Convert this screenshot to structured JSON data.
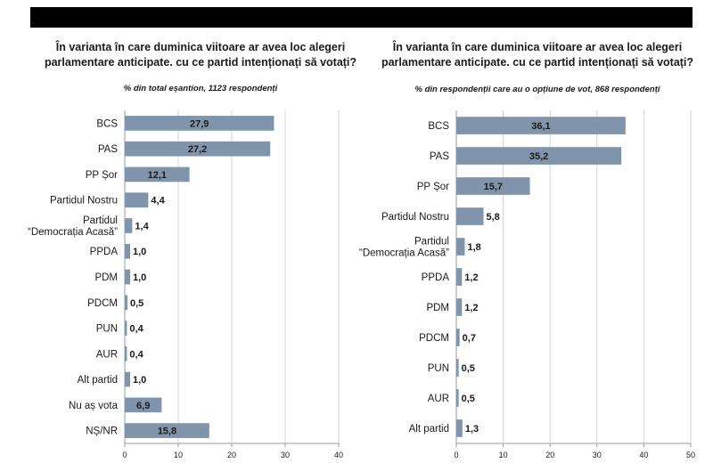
{
  "chart_data": [
    {
      "type": "bar",
      "orientation": "horizontal",
      "title": "În varianta în care duminica viitoare ar avea loc alegeri parlamentare anticipate. cu ce partid intenționați să votați?",
      "subtitle": "% din total eșantion, 1123 respondenți",
      "categories": [
        "BCS",
        "PAS",
        "PP Șor",
        "Partidul Nostru",
        "Partidul\n“Democrația Acasă”",
        "PPDA",
        "PDM",
        "PDCM",
        "PUN",
        "AUR",
        "Alt partid",
        "Nu aș vota",
        "NȘ/NR"
      ],
      "values": [
        27.9,
        27.2,
        12.1,
        4.4,
        1.4,
        1.0,
        1.0,
        0.5,
        0.4,
        0.4,
        1.0,
        6.9,
        15.8
      ],
      "value_labels": [
        "27,9",
        "27,2",
        "12,1",
        "4,4",
        "1,4",
        "1,0",
        "1,0",
        "0,5",
        "0,4",
        "0,4",
        "1,0",
        "6,9",
        "15,8"
      ],
      "xlim": [
        0,
        40
      ],
      "xticks": [
        0,
        10,
        20,
        30,
        40
      ],
      "grid": true,
      "bar_color": "#8095ab"
    },
    {
      "type": "bar",
      "orientation": "horizontal",
      "title": "În varianta în care duminica viitoare ar avea loc alegeri parlamentare anticipate. cu ce partid intenționați să votați?",
      "subtitle": "% din respondenții care au o opțiune de vot, 868 respondenți",
      "categories": [
        "BCS",
        "PAS",
        "PP Șor",
        "Partidul Nostru",
        "Partidul\n“Democrația Acasă”",
        "PPDA",
        "PDM",
        "PDCM",
        "PUN",
        "AUR",
        "Alt partid"
      ],
      "values": [
        36.1,
        35.2,
        15.7,
        5.8,
        1.8,
        1.2,
        1.2,
        0.7,
        0.5,
        0.5,
        1.3
      ],
      "value_labels": [
        "36,1",
        "35,2",
        "15,7",
        "5,8",
        "1,8",
        "1,2",
        "1,2",
        "0,7",
        "0,5",
        "0,5",
        "1,3"
      ],
      "xlim": [
        0,
        50
      ],
      "xticks": [
        0,
        10,
        20,
        30,
        40,
        50
      ],
      "grid": true,
      "bar_color": "#8095ab"
    }
  ]
}
